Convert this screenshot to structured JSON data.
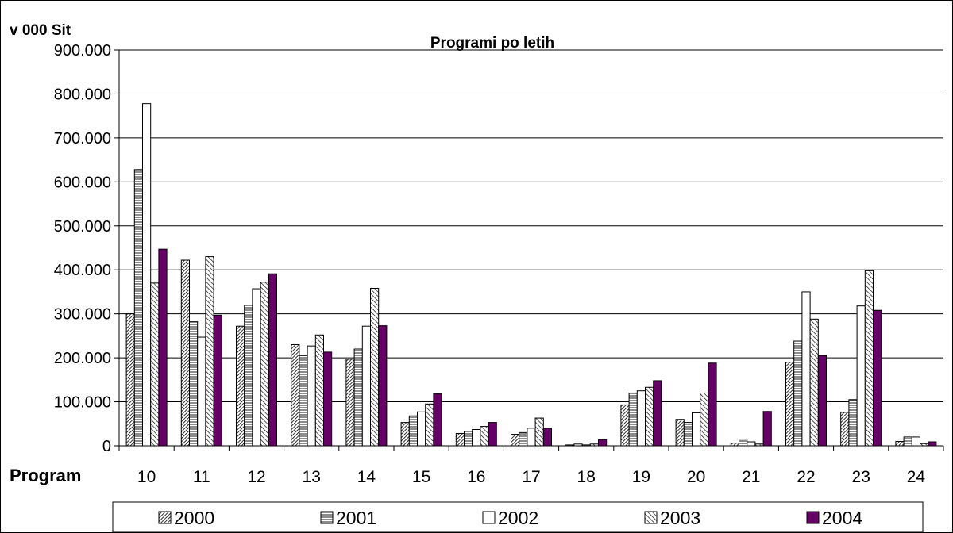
{
  "chart_data": {
    "type": "bar",
    "title": "Programi po letih",
    "ylabel": "v 000 Sit",
    "xlabel": "Program",
    "ylim": [
      0,
      900000
    ],
    "y_ticks": [
      "0",
      "100.000",
      "200.000",
      "300.000",
      "400.000",
      "500.000",
      "600.000",
      "700.000",
      "800.000",
      "900.000"
    ],
    "grid": true,
    "legend_position": "bottom",
    "categories": [
      "10",
      "11",
      "12",
      "13",
      "14",
      "15",
      "16",
      "17",
      "18",
      "19",
      "20",
      "21",
      "22",
      "23",
      "24"
    ],
    "series": [
      {
        "name": "2000",
        "pattern": "dense-diagonal",
        "color": "#ffffff",
        "values": [
          300000,
          422000,
          272000,
          230000,
          197000,
          53000,
          28000,
          26000,
          2000,
          93000,
          60000,
          6000,
          190000,
          76000,
          10000
        ]
      },
      {
        "name": "2001",
        "pattern": "horizontal-lines",
        "color": "#ffffff",
        "values": [
          628000,
          282000,
          320000,
          205000,
          220000,
          68000,
          33000,
          30000,
          4000,
          120000,
          53000,
          15000,
          238000,
          105000,
          20000
        ]
      },
      {
        "name": "2002",
        "pattern": "solid-white",
        "color": "#ffffff",
        "values": [
          778000,
          247000,
          357000,
          227000,
          272000,
          77000,
          37000,
          40000,
          2000,
          125000,
          75000,
          9000,
          350000,
          318000,
          20000
        ]
      },
      {
        "name": "2003",
        "pattern": "diagonal-lines",
        "color": "#ffffff",
        "values": [
          370000,
          430000,
          372000,
          252000,
          358000,
          95000,
          44000,
          63000,
          4000,
          133000,
          120000,
          4000,
          288000,
          398000,
          5000
        ]
      },
      {
        "name": "2004",
        "pattern": "solid",
        "color": "#660066",
        "values": [
          447000,
          297000,
          391000,
          213000,
          273000,
          118000,
          53000,
          40000,
          14000,
          148000,
          188000,
          78000,
          205000,
          308000,
          9000
        ]
      }
    ]
  }
}
